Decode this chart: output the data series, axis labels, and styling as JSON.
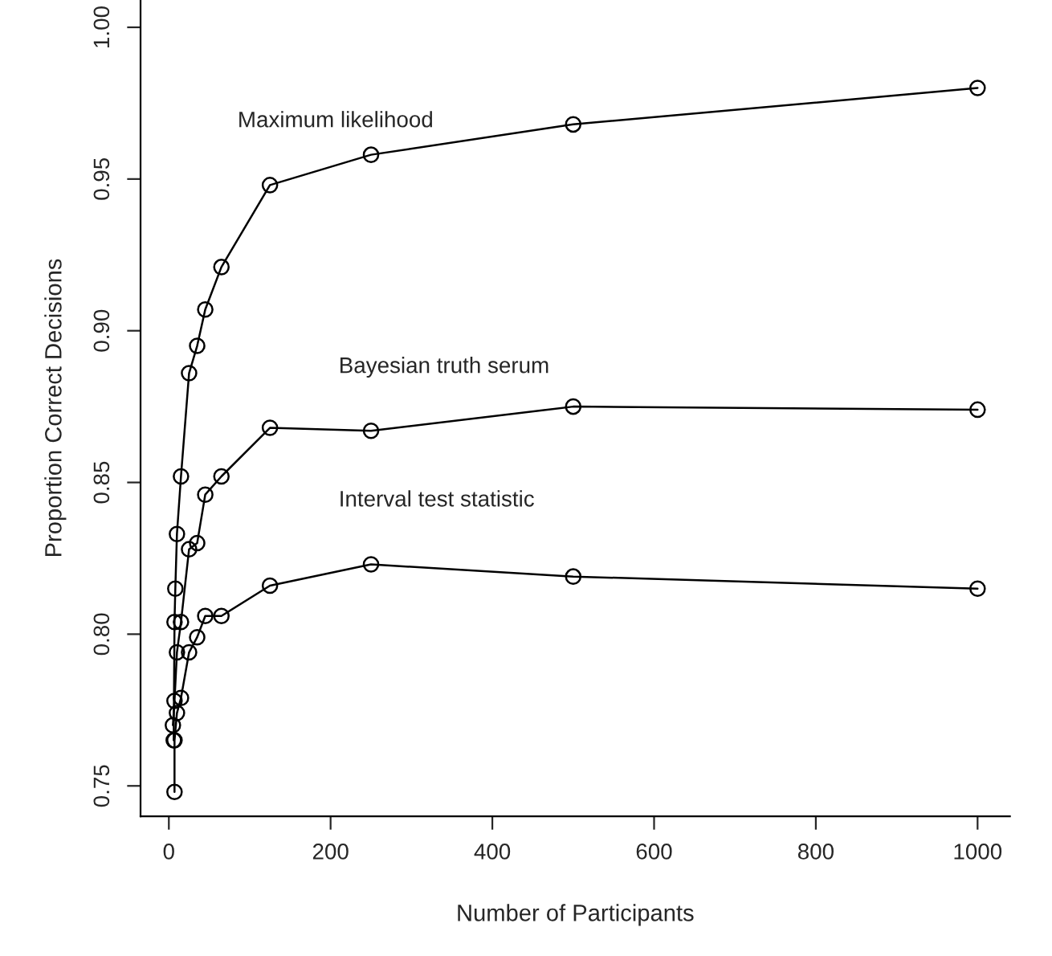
{
  "chart_data": {
    "type": "line",
    "xlabel": "Number of Participants",
    "ylabel": "Proportion Correct Decisions",
    "xlim": [
      -35,
      1040
    ],
    "ylim": [
      0.74,
      1.009
    ],
    "xticks": [
      0,
      200,
      400,
      600,
      800,
      1000
    ],
    "yticks": [
      {
        "value": 0.75,
        "label": "0.75"
      },
      {
        "value": 0.8,
        "label": "0.80"
      },
      {
        "value": 0.85,
        "label": "0.85"
      },
      {
        "value": 0.9,
        "label": "0.90"
      },
      {
        "value": 0.95,
        "label": "0.95"
      },
      {
        "value": 1.0,
        "label": "1.00"
      }
    ],
    "grid": false,
    "legend": false,
    "marker": "circle",
    "line_style": "solid",
    "series": [
      {
        "name": "Maximum likelihood",
        "color": "#000000",
        "x": [
          6,
          7,
          8,
          10,
          15,
          25,
          35,
          45,
          65,
          125,
          250,
          500,
          1000
        ],
        "values": [
          0.765,
          0.804,
          0.815,
          0.833,
          0.852,
          0.886,
          0.895,
          0.907,
          0.921,
          0.948,
          0.958,
          0.968,
          0.98
        ]
      },
      {
        "name": "Bayesian truth serum",
        "color": "#000000",
        "x": [
          5,
          7,
          10,
          15,
          25,
          35,
          45,
          65,
          125,
          250,
          500,
          1000
        ],
        "values": [
          0.77,
          0.778,
          0.794,
          0.804,
          0.828,
          0.83,
          0.846,
          0.852,
          0.868,
          0.867,
          0.875,
          0.874
        ]
      },
      {
        "name": "Interval test statistic",
        "color": "#000000",
        "x": [
          7,
          7,
          10,
          15,
          25,
          35,
          45,
          65,
          125,
          250,
          500,
          1000
        ],
        "values": [
          0.748,
          0.765,
          0.774,
          0.779,
          0.794,
          0.799,
          0.806,
          0.806,
          0.816,
          0.823,
          0.819,
          0.815
        ]
      }
    ]
  }
}
